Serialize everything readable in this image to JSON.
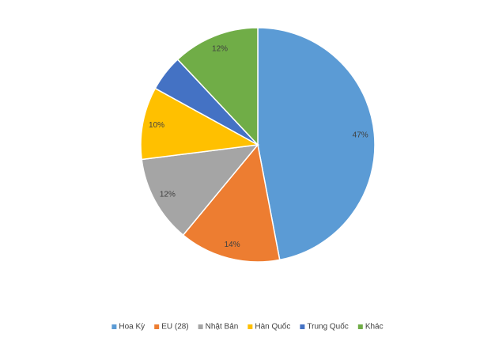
{
  "chart_data": {
    "type": "pie",
    "categories": [
      "Hoa Kỳ",
      "EU (28)",
      "Nhật Bản",
      "Hàn Quốc",
      "Trung Quốc",
      "Khác"
    ],
    "values": [
      47,
      14,
      12,
      10,
      5,
      12
    ],
    "value_labels": [
      "47%",
      "14%",
      "12%",
      "10%",
      null,
      "12%"
    ],
    "colors": [
      "#5b9bd5",
      "#ed7d31",
      "#a5a5a5",
      "#ffc000",
      "#4472c4",
      "#70ad47"
    ],
    "legend": "bottom"
  }
}
